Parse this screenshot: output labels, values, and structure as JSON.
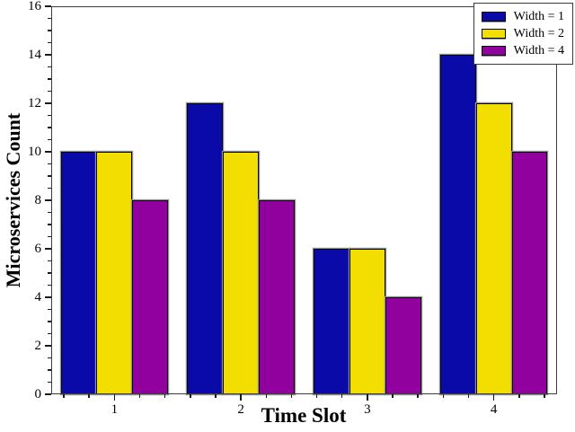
{
  "figure": {
    "background": "#ffffff"
  },
  "chart_data": {
    "type": "bar",
    "title": "",
    "xlabel": "Time Slot",
    "ylabel": "Microservices Count",
    "categories": [
      "1",
      "2",
      "3",
      "4"
    ],
    "series": [
      {
        "name": "Width = 1",
        "color": "#0a0aa8",
        "values": [
          10,
          12,
          6,
          14
        ]
      },
      {
        "name": "Width = 2",
        "color": "#f2de00",
        "values": [
          10,
          10,
          6,
          12
        ]
      },
      {
        "name": "Width = 4",
        "color": "#91019d",
        "values": [
          8,
          8,
          4,
          10
        ]
      }
    ],
    "ylim": [
      0,
      16
    ],
    "x_range": [
      0.5,
      4.5
    ],
    "y_tick_labels": [
      "0",
      "2",
      "4",
      "6",
      "8",
      "10",
      "12",
      "14",
      "16"
    ],
    "y_major_step": 2,
    "y_minor_step": 0.5,
    "x_minor_step": 0.2,
    "grid": false,
    "legend_position": "top-right",
    "bar_edge_color": "#050505",
    "bar_halo_color": "#8f8f8f",
    "axis_color": "#3d3d3d"
  }
}
